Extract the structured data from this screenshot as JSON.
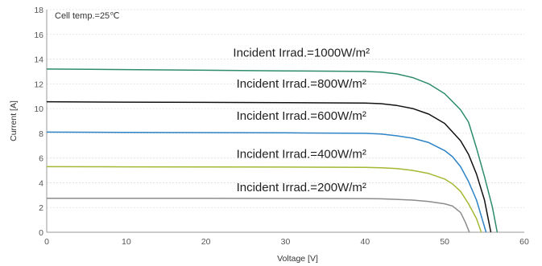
{
  "chart_data": {
    "type": "line",
    "title": "",
    "annotation": "Cell temp.=25℃",
    "xlabel": "Voltage [V]",
    "ylabel": "Current [A]",
    "xlim": [
      0,
      60
    ],
    "ylim": [
      0,
      18
    ],
    "x_ticks": [
      "0",
      "10",
      "20",
      "30",
      "40",
      "50",
      "60"
    ],
    "y_ticks": [
      "0",
      "2",
      "4",
      "6",
      "8",
      "10",
      "12",
      "14",
      "16",
      "18"
    ],
    "grid": true,
    "series": [
      {
        "name": "Incident Irrad.=1000W/m²",
        "color": "#2e8b6e",
        "label_at": [
          32,
          14.2
        ],
        "points": [
          [
            0,
            13.2
          ],
          [
            10,
            13.15
          ],
          [
            20,
            13.1
          ],
          [
            30,
            13.05
          ],
          [
            40,
            13.0
          ],
          [
            42,
            12.95
          ],
          [
            44,
            12.8
          ],
          [
            46,
            12.5
          ],
          [
            48,
            12.0
          ],
          [
            50,
            11.2
          ],
          [
            52,
            9.9
          ],
          [
            53,
            8.9
          ],
          [
            54,
            6.8
          ],
          [
            55,
            4.5
          ],
          [
            56,
            2.0
          ],
          [
            56.6,
            0
          ]
        ]
      },
      {
        "name": "Incident Irrad.=800W/m²",
        "color": "#111111",
        "label_at": [
          32,
          11.7
        ],
        "points": [
          [
            0,
            10.55
          ],
          [
            10,
            10.52
          ],
          [
            20,
            10.5
          ],
          [
            30,
            10.48
          ],
          [
            40,
            10.45
          ],
          [
            42,
            10.4
          ],
          [
            44,
            10.25
          ],
          [
            46,
            10.0
          ],
          [
            48,
            9.55
          ],
          [
            50,
            8.8
          ],
          [
            52,
            7.4
          ],
          [
            53,
            6.3
          ],
          [
            54,
            4.7
          ],
          [
            55,
            2.6
          ],
          [
            55.8,
            0
          ]
        ]
      },
      {
        "name": "Incident Irrad.=600W/m²",
        "color": "#2e84c6",
        "label_at": [
          32,
          9.1
        ],
        "points": [
          [
            0,
            8.1
          ],
          [
            10,
            8.08
          ],
          [
            20,
            8.06
          ],
          [
            30,
            8.04
          ],
          [
            40,
            8.0
          ],
          [
            42,
            7.95
          ],
          [
            44,
            7.8
          ],
          [
            46,
            7.6
          ],
          [
            48,
            7.25
          ],
          [
            50,
            6.6
          ],
          [
            51,
            6.1
          ],
          [
            52,
            5.3
          ],
          [
            53,
            4.1
          ],
          [
            54,
            2.6
          ],
          [
            55.2,
            0
          ]
        ]
      },
      {
        "name": "Incident Irrad.=400W/m²",
        "color": "#a6b733",
        "label_at": [
          32,
          6.0
        ],
        "points": [
          [
            0,
            5.3
          ],
          [
            10,
            5.29
          ],
          [
            20,
            5.28
          ],
          [
            30,
            5.27
          ],
          [
            40,
            5.25
          ],
          [
            42,
            5.22
          ],
          [
            44,
            5.15
          ],
          [
            46,
            5.0
          ],
          [
            48,
            4.75
          ],
          [
            50,
            4.3
          ],
          [
            51,
            3.9
          ],
          [
            52,
            3.3
          ],
          [
            53,
            2.3
          ],
          [
            54,
            1.1
          ],
          [
            54.6,
            0
          ]
        ]
      },
      {
        "name": "Incident Irrad.=200W/m²",
        "color": "#8c8c8c",
        "label_at": [
          32,
          3.3
        ],
        "points": [
          [
            0,
            2.75
          ],
          [
            10,
            2.74
          ],
          [
            20,
            2.74
          ],
          [
            30,
            2.73
          ],
          [
            40,
            2.72
          ],
          [
            42,
            2.7
          ],
          [
            44,
            2.66
          ],
          [
            46,
            2.6
          ],
          [
            48,
            2.48
          ],
          [
            50,
            2.3
          ],
          [
            51,
            2.12
          ],
          [
            52,
            1.6
          ],
          [
            52.6,
            0.8
          ],
          [
            53.1,
            0
          ]
        ]
      }
    ]
  }
}
